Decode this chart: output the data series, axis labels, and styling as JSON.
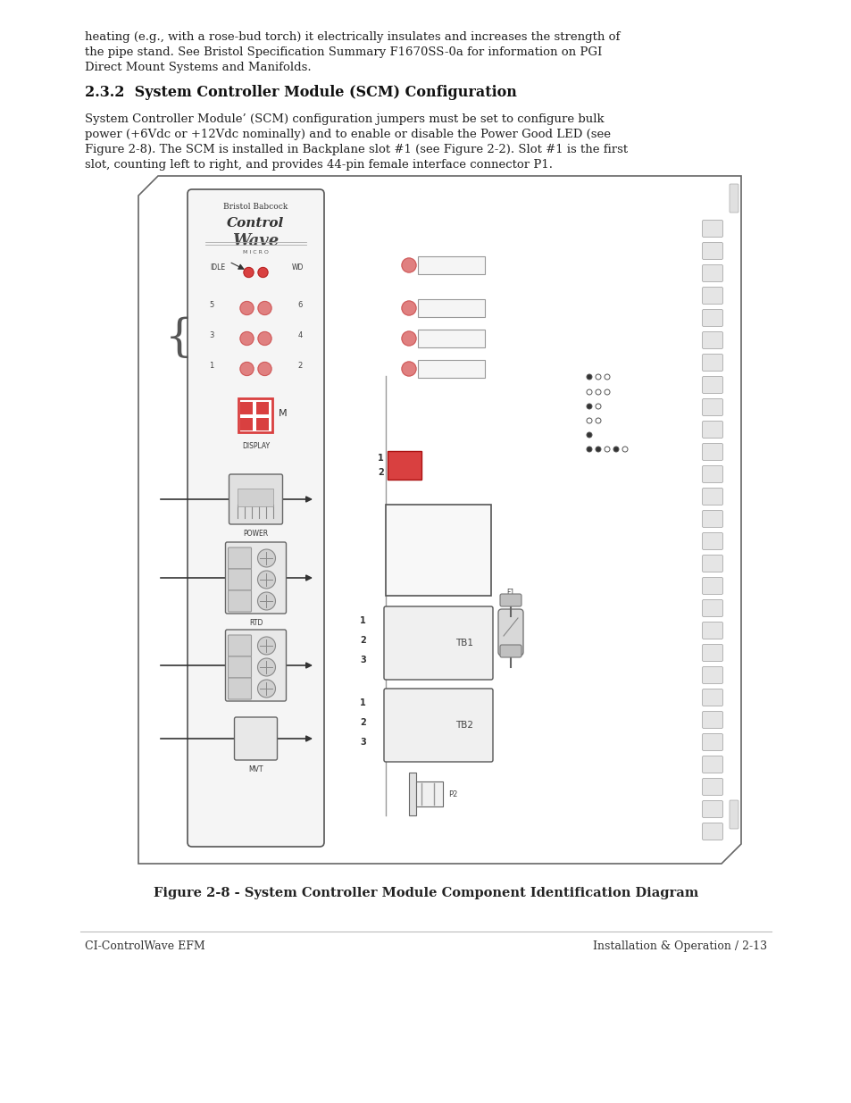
{
  "background_color": "#ffffff",
  "body_text_1_lines": [
    "heating (e.g., with a rose-bud torch) it electrically insulates and increases the strength of",
    "the pipe stand. See Bristol Specification Summary F1670SS-0a for information on PGI",
    "Direct Mount Systems and Manifolds."
  ],
  "section_title": "2.3.2  System Controller Module (SCM) Configuration",
  "body_text_2_lines": [
    "System Controller Module’ (SCM) configuration jumpers must be set to configure bulk",
    "power (+6Vdc or +12Vdc nominally) and to enable or disable the Power Good LED (see",
    "Figure 2-8). The SCM is installed in Backplane slot #1 (see Figure 2-2). Slot #1 is the first",
    "slot, counting left to right, and provides 44-pin female interface connector P1."
  ],
  "figure_caption": "Figure 2-8 - System Controller Module Component Identification Diagram",
  "footer_left": "CI-ControlWave EFM",
  "footer_right": "Installation & Operation / 2-13",
  "red_color": "#d94040",
  "light_red": "#e08080",
  "dark_gray": "#333333",
  "mid_gray": "#888888",
  "light_gray": "#cccccc",
  "border_color": "#555555"
}
